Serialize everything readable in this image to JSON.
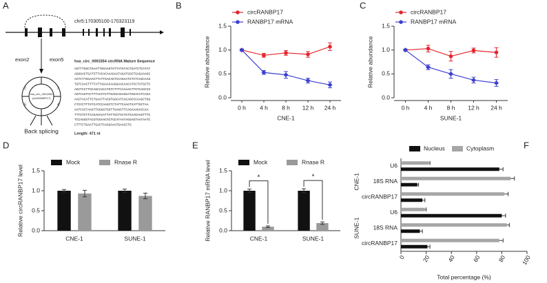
{
  "diagram": {
    "panel": "A",
    "location": "chr5:170305100-170323119",
    "exon_left": "exon2",
    "exon_right": "exon5",
    "circle_label": [
      "hsa_circ_0001554",
      "(circRANBP17)"
    ],
    "circle_numbers": [
      "2",
      "3",
      "4",
      "5"
    ],
    "back_splicing": "Back splicing",
    "sequence_title": "hsa_circ_0001554 circRNA Mature Sequence",
    "sequence_lines": [
      "AGTTTGGCTGAATTGGAAGTGTTATGTACTGATCTCATAT",
      "AGGGACTGATCTTACACAAAGAATAGATGGCTGAGAAAGC",
      "ACTCTTGGAACTTATTGACAGTCCAGAATGTCTCAGCAAG",
      "TGTCAACTTTTATTAGAACAAGGAACAACATCCTATGCTC",
      "AGCTCCTTGCAGCAACATGTCTTTCAAAACTTGTCAGCCG",
      "AGTCAGTCCTTTACCTGTTGAGCAGAGGATGGACATCAGA",
      "AACTACATTCTGAATTACGTGGCATCACAGCCCAAGCTGG",
      "CTCCCTTTGTCATCCAAGCTCTATTCAAGTCATTGCTAA",
      "AATCACTAAGTTGGGGTGGTTGAGGTTCAGAAAGACCAA",
      "TTTGTCTTCAGAGAAATTATTGCTGATGTGAAGAAGTTTC",
      "TCCAGGGTACGTGGAACACTGCATAATAGGAGTAATAATC",
      "CTTTCTGAATTGACTCAGGAAATGAACCTG"
    ],
    "length": "Length: 471 nt"
  },
  "chart_data": [
    {
      "type": "line",
      "panel": "B",
      "xlabel": "CNE-1",
      "ylabel": "Relative abundance",
      "categories": [
        "0 h",
        "4 h",
        "8 h",
        "12 h",
        "24 h"
      ],
      "series": [
        {
          "name": "circRANBP17",
          "color": "#e3262e",
          "values": [
            1.0,
            0.89,
            0.94,
            0.91,
            1.07
          ],
          "errors": [
            0.02,
            0.04,
            0.05,
            0.06,
            0.08
          ]
        },
        {
          "name": "RANBP17 mRNA",
          "color": "#3b3fd0",
          "values": [
            1.0,
            0.53,
            0.48,
            0.36,
            0.27
          ],
          "errors": [
            0.02,
            0.04,
            0.07,
            0.05,
            0.06
          ]
        }
      ],
      "ylim": [
        0,
        1.5
      ],
      "yticks": [
        {
          "value": 0,
          "label": "0.0"
        },
        {
          "value": 0.5,
          "label": "0.5"
        },
        {
          "value": 1,
          "label": "1.0"
        },
        {
          "value": 1.5,
          "label": "1.5"
        }
      ]
    },
    {
      "type": "line",
      "panel": "C",
      "xlabel": "SUNE-1",
      "ylabel": "Relative abundance",
      "categories": [
        "0 h",
        "4 h",
        "8 h",
        "12 h",
        "24 h"
      ],
      "series": [
        {
          "name": "circRANBP17",
          "color": "#e3262e",
          "values": [
            1.0,
            1.03,
            0.87,
            0.99,
            0.95
          ],
          "errors": [
            0.02,
            0.07,
            0.1,
            0.05,
            0.1
          ]
        },
        {
          "name": "RANBP17 mRNA",
          "color": "#3b3fd0",
          "values": [
            1.0,
            0.64,
            0.5,
            0.37,
            0.31
          ],
          "errors": [
            0.02,
            0.05,
            0.09,
            0.06,
            0.07
          ]
        }
      ],
      "ylim": [
        0,
        1.5
      ],
      "yticks": [
        {
          "value": 0,
          "label": "0.0"
        },
        {
          "value": 0.5,
          "label": "0.5"
        },
        {
          "value": 1,
          "label": "1.0"
        },
        {
          "value": 1.5,
          "label": "1.5"
        }
      ]
    },
    {
      "type": "bar",
      "panel": "D",
      "ylabel": "Relative circRANBP17  level",
      "categories": [
        "CNE-1",
        "SUNE-1"
      ],
      "series": [
        {
          "name": "Mock",
          "color": "#111111",
          "values": [
            1.0,
            1.0
          ],
          "errors": [
            0.03,
            0.04
          ]
        },
        {
          "name": "Rnase R",
          "color": "#9a9a9a",
          "values": [
            0.93,
            0.87
          ],
          "errors": [
            0.08,
            0.07
          ]
        }
      ],
      "ylim": [
        0,
        1.5
      ],
      "yticks": [
        {
          "value": 0,
          "label": "0.0"
        },
        {
          "value": 0.5,
          "label": "0.5"
        },
        {
          "value": 1,
          "label": "1.0"
        },
        {
          "value": 1.5,
          "label": "1.5"
        }
      ]
    },
    {
      "type": "bar",
      "panel": "E",
      "ylabel": "Relative RANBP17 mRNA level",
      "categories": [
        "CNE-1",
        "SUNE-1"
      ],
      "series": [
        {
          "name": "Mock",
          "color": "#111111",
          "values": [
            1.0,
            1.0
          ],
          "errors": [
            0.04,
            0.05
          ]
        },
        {
          "name": "Rnase R",
          "color": "#9a9a9a",
          "values": [
            0.1,
            0.19
          ],
          "errors": [
            0.02,
            0.03
          ]
        }
      ],
      "annotations": [
        "*",
        "*"
      ],
      "ylim": [
        0,
        1.5
      ],
      "yticks": [
        {
          "value": 0,
          "label": "0.0"
        },
        {
          "value": 0.5,
          "label": "0.5"
        },
        {
          "value": 1,
          "label": "1.0"
        },
        {
          "value": 1.5,
          "label": "1.5"
        }
      ]
    },
    {
      "type": "hbar",
      "panel": "F",
      "xlabel": "Total percentage (%)",
      "categories": [
        "U6",
        "18S RNA",
        "circRANBP17",
        "U6",
        "18S RNA",
        "circRANBP17"
      ],
      "groups": [
        "CNE-1",
        "SUNE-1"
      ],
      "series": [
        {
          "name": "Nucleus",
          "color": "#111111",
          "values": [
            78,
            13,
            17,
            80,
            15,
            21
          ],
          "errors": [
            3,
            1,
            2,
            3,
            2,
            2
          ]
        },
        {
          "name": "Cytoplasm",
          "color": "#a6a6a6",
          "values": [
            22,
            87,
            82,
            19,
            84,
            78
          ],
          "errors": [
            1,
            3,
            3,
            1,
            2,
            3
          ]
        }
      ],
      "xlim": [
        0,
        100
      ],
      "xticks": [
        0,
        20,
        40,
        60,
        80,
        100
      ]
    }
  ]
}
